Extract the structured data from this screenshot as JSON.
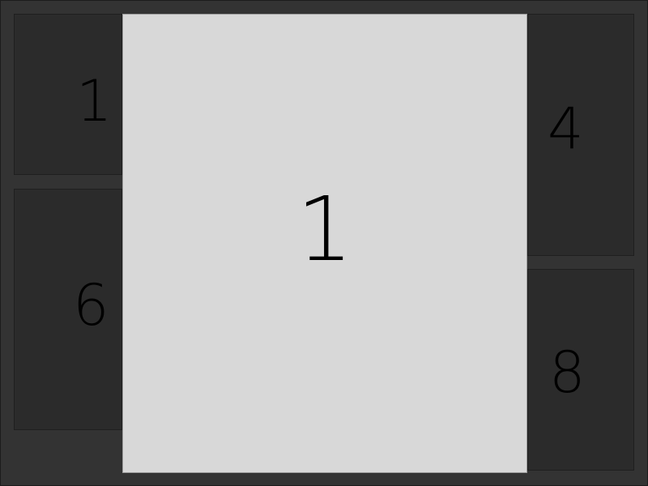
{
  "colors": {
    "background": "#333333",
    "tile": "#2b2b2b",
    "focused_tile": "#d8d8d8",
    "number": "#000000"
  },
  "tiles": {
    "left_top": {
      "label": "1"
    },
    "left_bottom": {
      "label": "6"
    },
    "right_top": {
      "label": "4"
    },
    "right_bottom": {
      "label": "8"
    }
  },
  "focused": {
    "label": "1"
  }
}
